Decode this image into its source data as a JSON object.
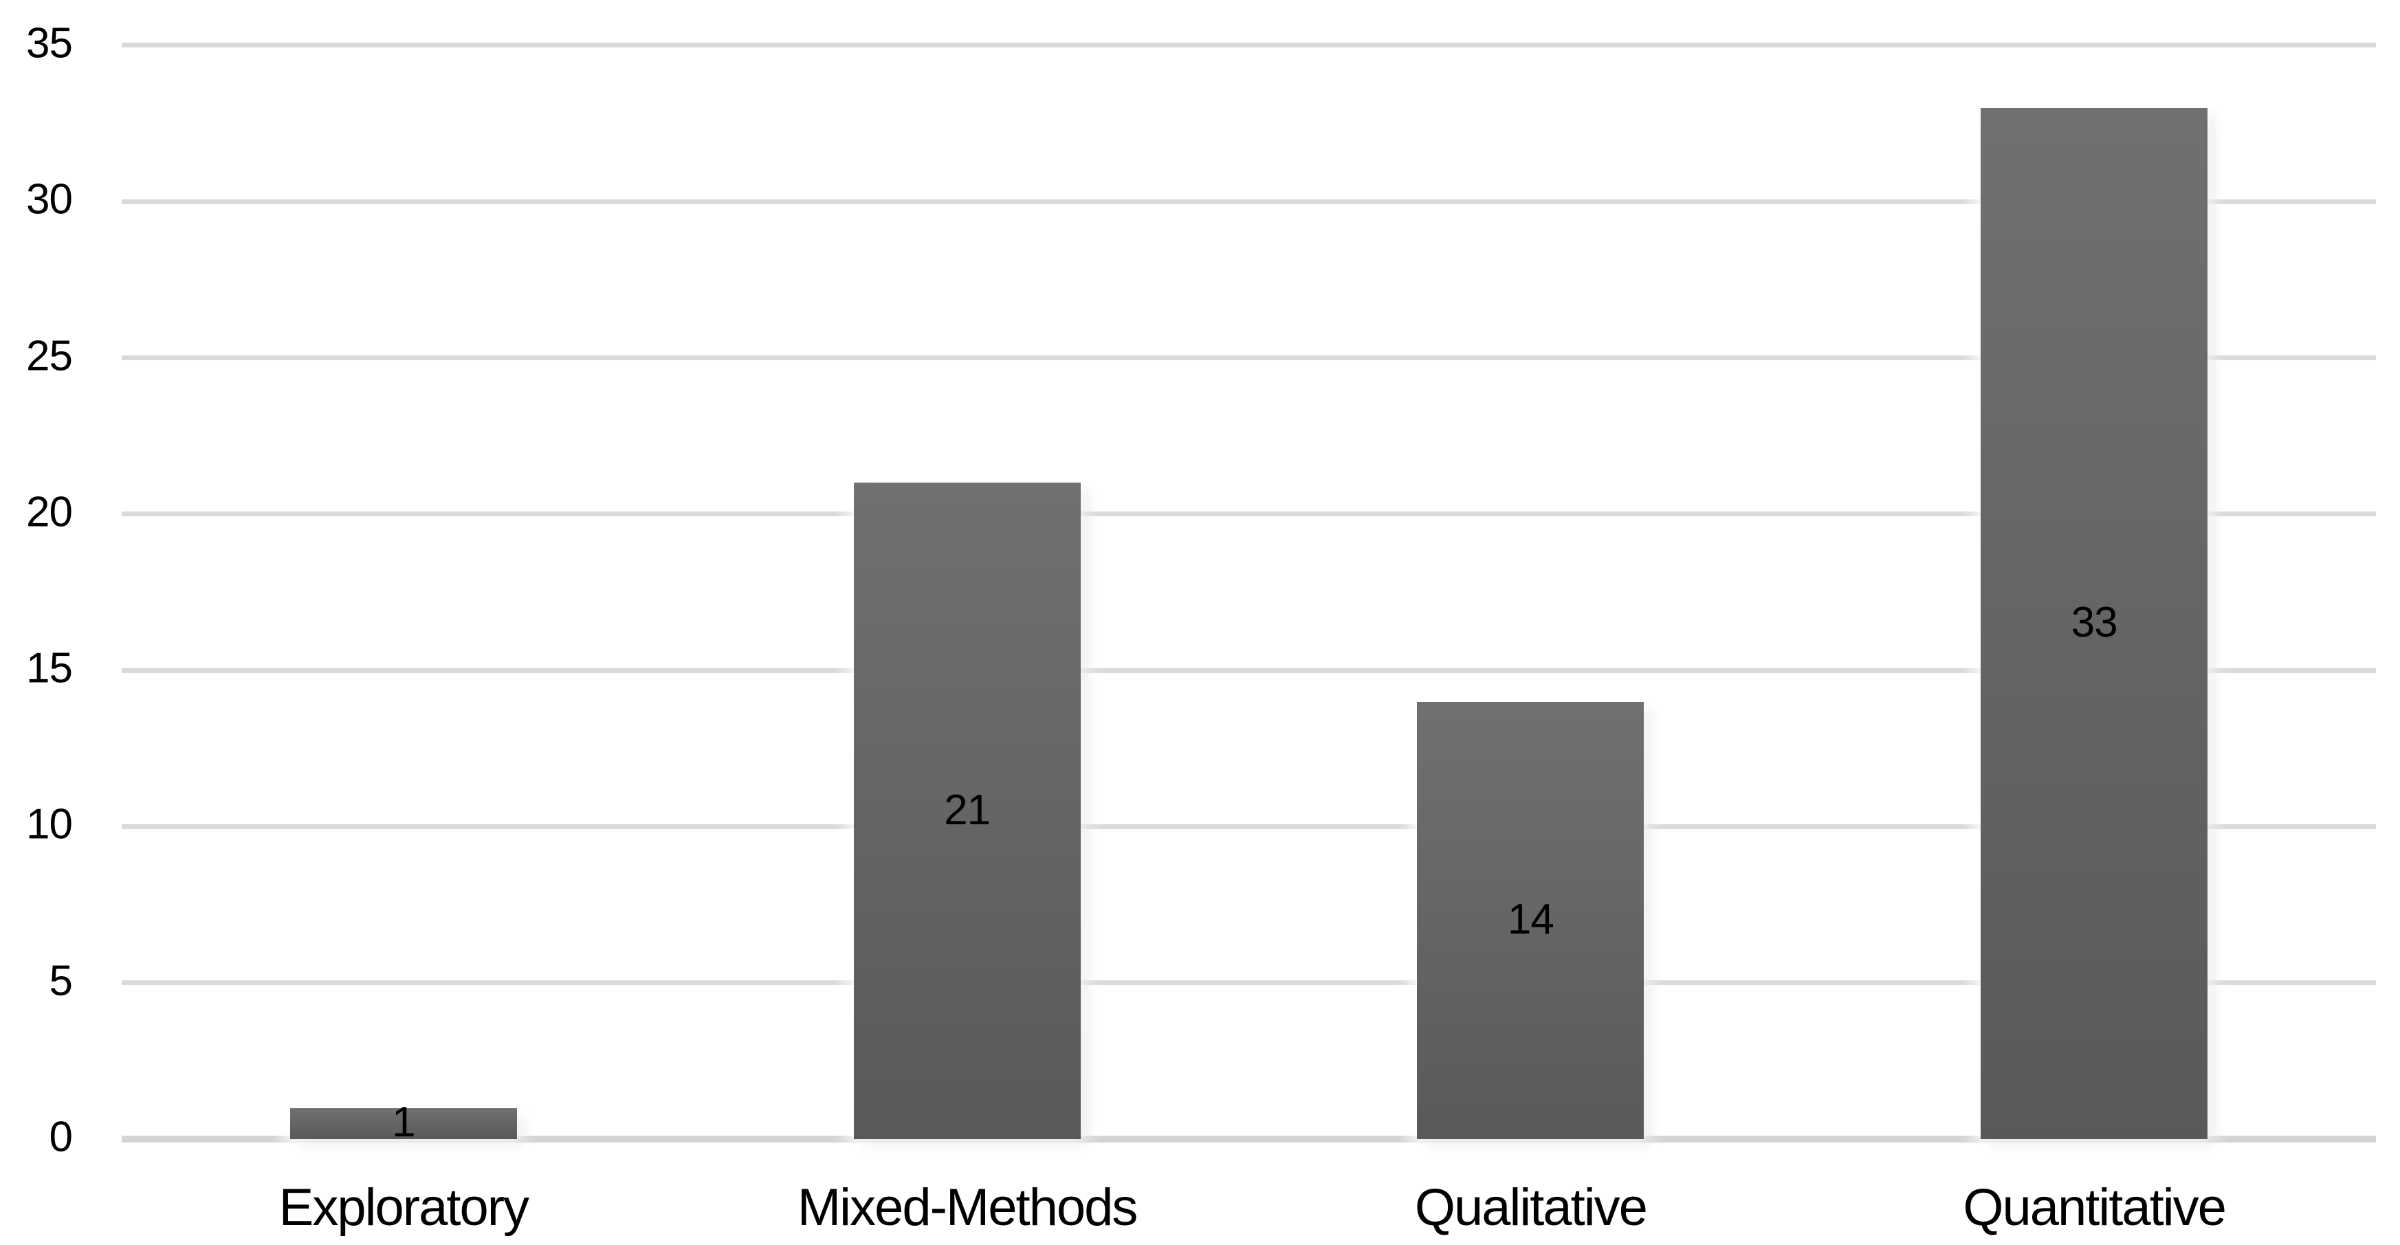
{
  "chart_data": {
    "type": "bar",
    "title": "",
    "categories": [
      "Exploratory",
      "Mixed-Methods",
      "Qualitative",
      "Quantitative"
    ],
    "values": [
      1,
      21,
      14,
      33
    ],
    "data_labels": [
      "1",
      "21",
      "14",
      "33"
    ],
    "y_ticks": [
      0,
      5,
      10,
      15,
      20,
      25,
      30,
      35
    ],
    "ylim": [
      0,
      35
    ],
    "xlabel": "",
    "ylabel": "",
    "legend_position": "none",
    "grid": "horizontal-on",
    "bar_color_top": "#707070",
    "bar_color_bottom": "#595959",
    "gridline_color": "#d9d9d9",
    "baseline_color": "#d4d4d4",
    "label_color": "#000000",
    "background_color": "#ffffff"
  }
}
